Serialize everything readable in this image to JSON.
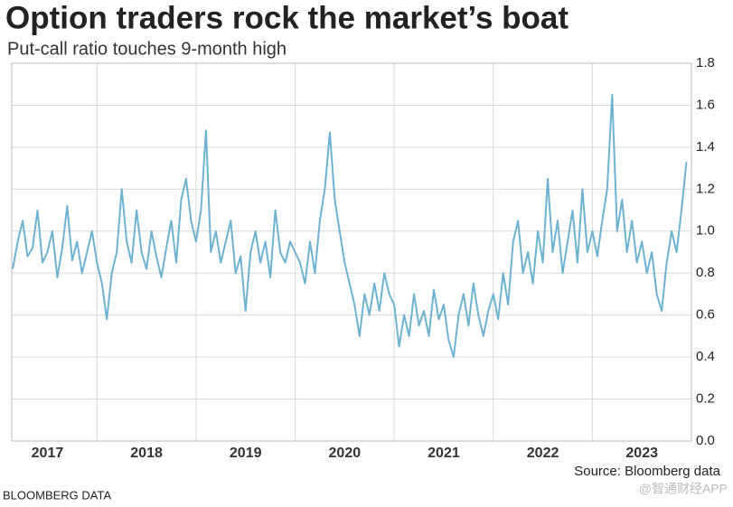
{
  "chart_data": {
    "type": "line",
    "title": "Option traders rock the market’s boat",
    "subtitle": "Put-call ratio touches 9-month high",
    "source": "Source: Bloomberg data",
    "credit": "BLOOMBERG DATA",
    "watermark": "@智通财经APP",
    "x": [
      2017.15,
      2017.2,
      2017.25,
      2017.3,
      2017.35,
      2017.4,
      2017.45,
      2017.5,
      2017.55,
      2017.6,
      2017.65,
      2017.7,
      2017.75,
      2017.8,
      2017.85,
      2017.9,
      2017.95,
      2018.0,
      2018.05,
      2018.1,
      2018.15,
      2018.2,
      2018.25,
      2018.3,
      2018.35,
      2018.4,
      2018.45,
      2018.5,
      2018.55,
      2018.6,
      2018.65,
      2018.7,
      2018.75,
      2018.8,
      2018.85,
      2018.9,
      2018.95,
      2019.0,
      2019.05,
      2019.1,
      2019.15,
      2019.2,
      2019.25,
      2019.3,
      2019.35,
      2019.4,
      2019.45,
      2019.5,
      2019.55,
      2019.6,
      2019.65,
      2019.7,
      2019.75,
      2019.8,
      2019.85,
      2019.9,
      2019.95,
      2020.0,
      2020.05,
      2020.1,
      2020.15,
      2020.2,
      2020.25,
      2020.3,
      2020.35,
      2020.4,
      2020.45,
      2020.5,
      2020.55,
      2020.6,
      2020.65,
      2020.7,
      2020.75,
      2020.8,
      2020.85,
      2020.9,
      2020.95,
      2021.0,
      2021.05,
      2021.1,
      2021.15,
      2021.2,
      2021.25,
      2021.3,
      2021.35,
      2021.4,
      2021.45,
      2021.5,
      2021.55,
      2021.6,
      2021.65,
      2021.7,
      2021.75,
      2021.8,
      2021.85,
      2021.9,
      2021.95,
      2022.0,
      2022.05,
      2022.1,
      2022.15,
      2022.2,
      2022.25,
      2022.3,
      2022.35,
      2022.4,
      2022.45,
      2022.5,
      2022.55,
      2022.6,
      2022.65,
      2022.7,
      2022.75,
      2022.8,
      2022.85,
      2022.9,
      2022.95,
      2023.0,
      2023.05,
      2023.1,
      2023.15,
      2023.2,
      2023.25,
      2023.3,
      2023.35,
      2023.4,
      2023.45,
      2023.5,
      2023.55,
      2023.6,
      2023.65,
      2023.7,
      2023.75,
      2023.8,
      2023.85,
      2023.9,
      2023.95
    ],
    "series": [
      {
        "name": "Put-call ratio",
        "color": "#6eb2d2",
        "values": [
          0.82,
          0.95,
          1.05,
          0.88,
          0.92,
          1.1,
          0.85,
          0.9,
          1.0,
          0.78,
          0.92,
          1.12,
          0.86,
          0.95,
          0.8,
          0.9,
          1.0,
          0.85,
          0.75,
          0.58,
          0.8,
          0.9,
          1.2,
          0.95,
          0.85,
          1.1,
          0.9,
          0.82,
          1.0,
          0.88,
          0.78,
          0.92,
          1.05,
          0.85,
          1.15,
          1.25,
          1.05,
          0.95,
          1.1,
          1.48,
          0.9,
          1.0,
          0.85,
          0.95,
          1.05,
          0.8,
          0.88,
          0.62,
          0.9,
          1.0,
          0.85,
          0.95,
          0.78,
          1.1,
          0.9,
          0.85,
          0.95,
          0.9,
          0.85,
          0.75,
          0.95,
          0.8,
          1.05,
          1.2,
          1.47,
          1.15,
          1.0,
          0.85,
          0.75,
          0.65,
          0.5,
          0.7,
          0.6,
          0.75,
          0.62,
          0.8,
          0.7,
          0.65,
          0.45,
          0.6,
          0.5,
          0.7,
          0.55,
          0.62,
          0.5,
          0.72,
          0.58,
          0.65,
          0.48,
          0.4,
          0.6,
          0.7,
          0.55,
          0.75,
          0.6,
          0.5,
          0.62,
          0.7,
          0.58,
          0.8,
          0.65,
          0.95,
          1.05,
          0.8,
          0.9,
          0.75,
          1.0,
          0.85,
          1.25,
          0.9,
          1.05,
          0.8,
          0.95,
          1.1,
          0.85,
          1.2,
          0.9,
          1.0,
          0.88,
          1.05,
          1.2,
          1.65,
          1.0,
          1.15,
          0.9,
          1.05,
          0.85,
          0.95,
          0.8,
          0.9,
          0.7,
          0.62,
          0.85,
          1.0,
          0.9,
          1.1,
          1.33
        ]
      }
    ],
    "xlim": [
      2017.14,
      2024.0
    ],
    "xticks": [
      {
        "value": 2017.5,
        "label": "2017"
      },
      {
        "value": 2018.5,
        "label": "2018"
      },
      {
        "value": 2019.5,
        "label": "2019"
      },
      {
        "value": 2020.5,
        "label": "2020"
      },
      {
        "value": 2021.5,
        "label": "2021"
      },
      {
        "value": 2022.5,
        "label": "2022"
      },
      {
        "value": 2023.5,
        "label": "2023"
      }
    ],
    "ylim": [
      0,
      1.8
    ],
    "yticks": [
      {
        "value": 0,
        "label": "0.0"
      },
      0.2,
      0.4,
      0.6,
      0.8,
      {
        "value": 1,
        "label": "1.0"
      },
      1.2,
      1.4,
      1.6,
      1.8
    ],
    "grid": true
  }
}
